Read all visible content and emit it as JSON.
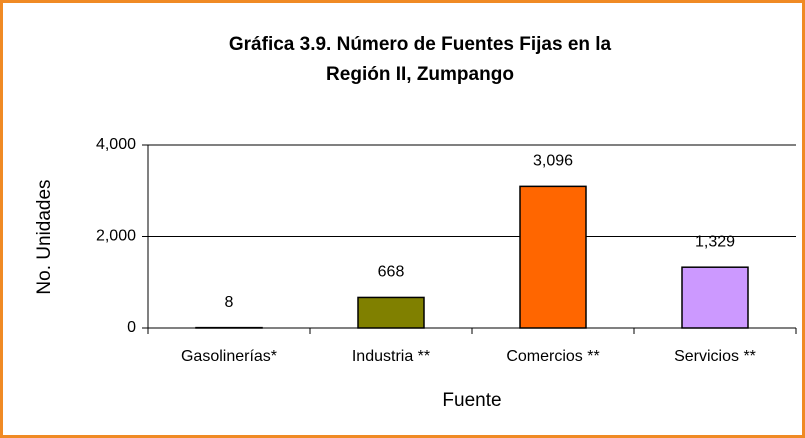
{
  "chart_data": {
    "type": "bar",
    "title": [
      "Gráfica 3.9. Número de Fuentes Fijas en la",
      "Región II, Zumpango"
    ],
    "x_label": "Fuente",
    "y_label": "No. Unidades",
    "categories": [
      "Gasolinerías*",
      "Industria **",
      "Comercios **",
      "Servicios **"
    ],
    "values": [
      8,
      668,
      3096,
      1329
    ],
    "value_labels": [
      "8",
      "668",
      "3,096",
      "1,329"
    ],
    "colors": [
      "#000080",
      "#808000",
      "#ff6600",
      "#cc99ff"
    ],
    "ylim": [
      0,
      4000
    ],
    "yticks": [
      0,
      {
        "value": 2000,
        "label": "2,000"
      },
      {
        "value": 4000,
        "label": "4,000"
      }
    ],
    "grid": true
  }
}
